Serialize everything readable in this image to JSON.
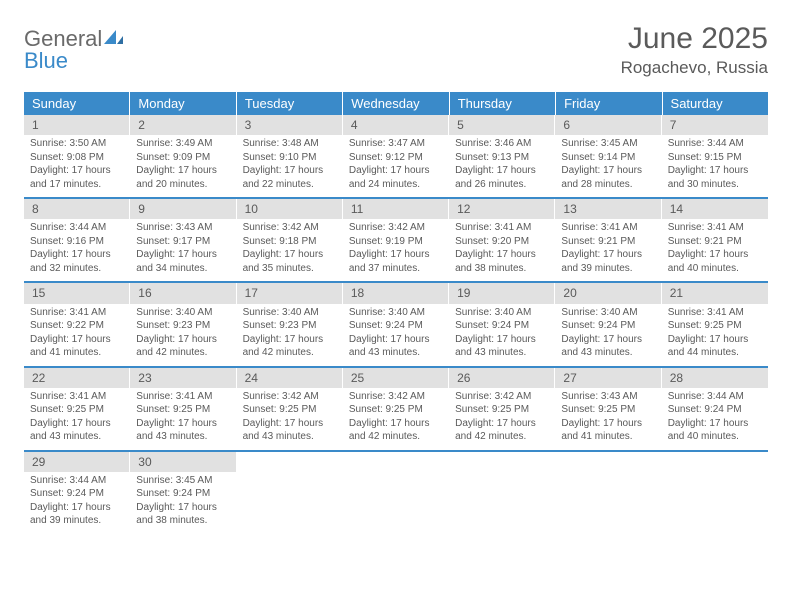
{
  "logo": {
    "general": "General",
    "blue": "Blue"
  },
  "title": "June 2025",
  "location": "Rogachevo, Russia",
  "colors": {
    "header_bg": "#3a8ac9",
    "header_text": "#ffffff",
    "daynum_bg": "#e1e1e1",
    "text": "#5a5a5a",
    "row_border": "#3a8ac9",
    "page_bg": "#ffffff"
  },
  "weekdays": [
    "Sunday",
    "Monday",
    "Tuesday",
    "Wednesday",
    "Thursday",
    "Friday",
    "Saturday"
  ],
  "weeks": [
    [
      {
        "n": "1",
        "sunrise": "3:50 AM",
        "sunset": "9:08 PM",
        "daylight": "17 hours and 17 minutes."
      },
      {
        "n": "2",
        "sunrise": "3:49 AM",
        "sunset": "9:09 PM",
        "daylight": "17 hours and 20 minutes."
      },
      {
        "n": "3",
        "sunrise": "3:48 AM",
        "sunset": "9:10 PM",
        "daylight": "17 hours and 22 minutes."
      },
      {
        "n": "4",
        "sunrise": "3:47 AM",
        "sunset": "9:12 PM",
        "daylight": "17 hours and 24 minutes."
      },
      {
        "n": "5",
        "sunrise": "3:46 AM",
        "sunset": "9:13 PM",
        "daylight": "17 hours and 26 minutes."
      },
      {
        "n": "6",
        "sunrise": "3:45 AM",
        "sunset": "9:14 PM",
        "daylight": "17 hours and 28 minutes."
      },
      {
        "n": "7",
        "sunrise": "3:44 AM",
        "sunset": "9:15 PM",
        "daylight": "17 hours and 30 minutes."
      }
    ],
    [
      {
        "n": "8",
        "sunrise": "3:44 AM",
        "sunset": "9:16 PM",
        "daylight": "17 hours and 32 minutes."
      },
      {
        "n": "9",
        "sunrise": "3:43 AM",
        "sunset": "9:17 PM",
        "daylight": "17 hours and 34 minutes."
      },
      {
        "n": "10",
        "sunrise": "3:42 AM",
        "sunset": "9:18 PM",
        "daylight": "17 hours and 35 minutes."
      },
      {
        "n": "11",
        "sunrise": "3:42 AM",
        "sunset": "9:19 PM",
        "daylight": "17 hours and 37 minutes."
      },
      {
        "n": "12",
        "sunrise": "3:41 AM",
        "sunset": "9:20 PM",
        "daylight": "17 hours and 38 minutes."
      },
      {
        "n": "13",
        "sunrise": "3:41 AM",
        "sunset": "9:21 PM",
        "daylight": "17 hours and 39 minutes."
      },
      {
        "n": "14",
        "sunrise": "3:41 AM",
        "sunset": "9:21 PM",
        "daylight": "17 hours and 40 minutes."
      }
    ],
    [
      {
        "n": "15",
        "sunrise": "3:41 AM",
        "sunset": "9:22 PM",
        "daylight": "17 hours and 41 minutes."
      },
      {
        "n": "16",
        "sunrise": "3:40 AM",
        "sunset": "9:23 PM",
        "daylight": "17 hours and 42 minutes."
      },
      {
        "n": "17",
        "sunrise": "3:40 AM",
        "sunset": "9:23 PM",
        "daylight": "17 hours and 42 minutes."
      },
      {
        "n": "18",
        "sunrise": "3:40 AM",
        "sunset": "9:24 PM",
        "daylight": "17 hours and 43 minutes."
      },
      {
        "n": "19",
        "sunrise": "3:40 AM",
        "sunset": "9:24 PM",
        "daylight": "17 hours and 43 minutes."
      },
      {
        "n": "20",
        "sunrise": "3:40 AM",
        "sunset": "9:24 PM",
        "daylight": "17 hours and 43 minutes."
      },
      {
        "n": "21",
        "sunrise": "3:41 AM",
        "sunset": "9:25 PM",
        "daylight": "17 hours and 44 minutes."
      }
    ],
    [
      {
        "n": "22",
        "sunrise": "3:41 AM",
        "sunset": "9:25 PM",
        "daylight": "17 hours and 43 minutes."
      },
      {
        "n": "23",
        "sunrise": "3:41 AM",
        "sunset": "9:25 PM",
        "daylight": "17 hours and 43 minutes."
      },
      {
        "n": "24",
        "sunrise": "3:42 AM",
        "sunset": "9:25 PM",
        "daylight": "17 hours and 43 minutes."
      },
      {
        "n": "25",
        "sunrise": "3:42 AM",
        "sunset": "9:25 PM",
        "daylight": "17 hours and 42 minutes."
      },
      {
        "n": "26",
        "sunrise": "3:42 AM",
        "sunset": "9:25 PM",
        "daylight": "17 hours and 42 minutes."
      },
      {
        "n": "27",
        "sunrise": "3:43 AM",
        "sunset": "9:25 PM",
        "daylight": "17 hours and 41 minutes."
      },
      {
        "n": "28",
        "sunrise": "3:44 AM",
        "sunset": "9:24 PM",
        "daylight": "17 hours and 40 minutes."
      }
    ],
    [
      {
        "n": "29",
        "sunrise": "3:44 AM",
        "sunset": "9:24 PM",
        "daylight": "17 hours and 39 minutes."
      },
      {
        "n": "30",
        "sunrise": "3:45 AM",
        "sunset": "9:24 PM",
        "daylight": "17 hours and 38 minutes."
      },
      null,
      null,
      null,
      null,
      null
    ]
  ],
  "labels": {
    "sunrise": "Sunrise:",
    "sunset": "Sunset:",
    "daylight": "Daylight:"
  }
}
